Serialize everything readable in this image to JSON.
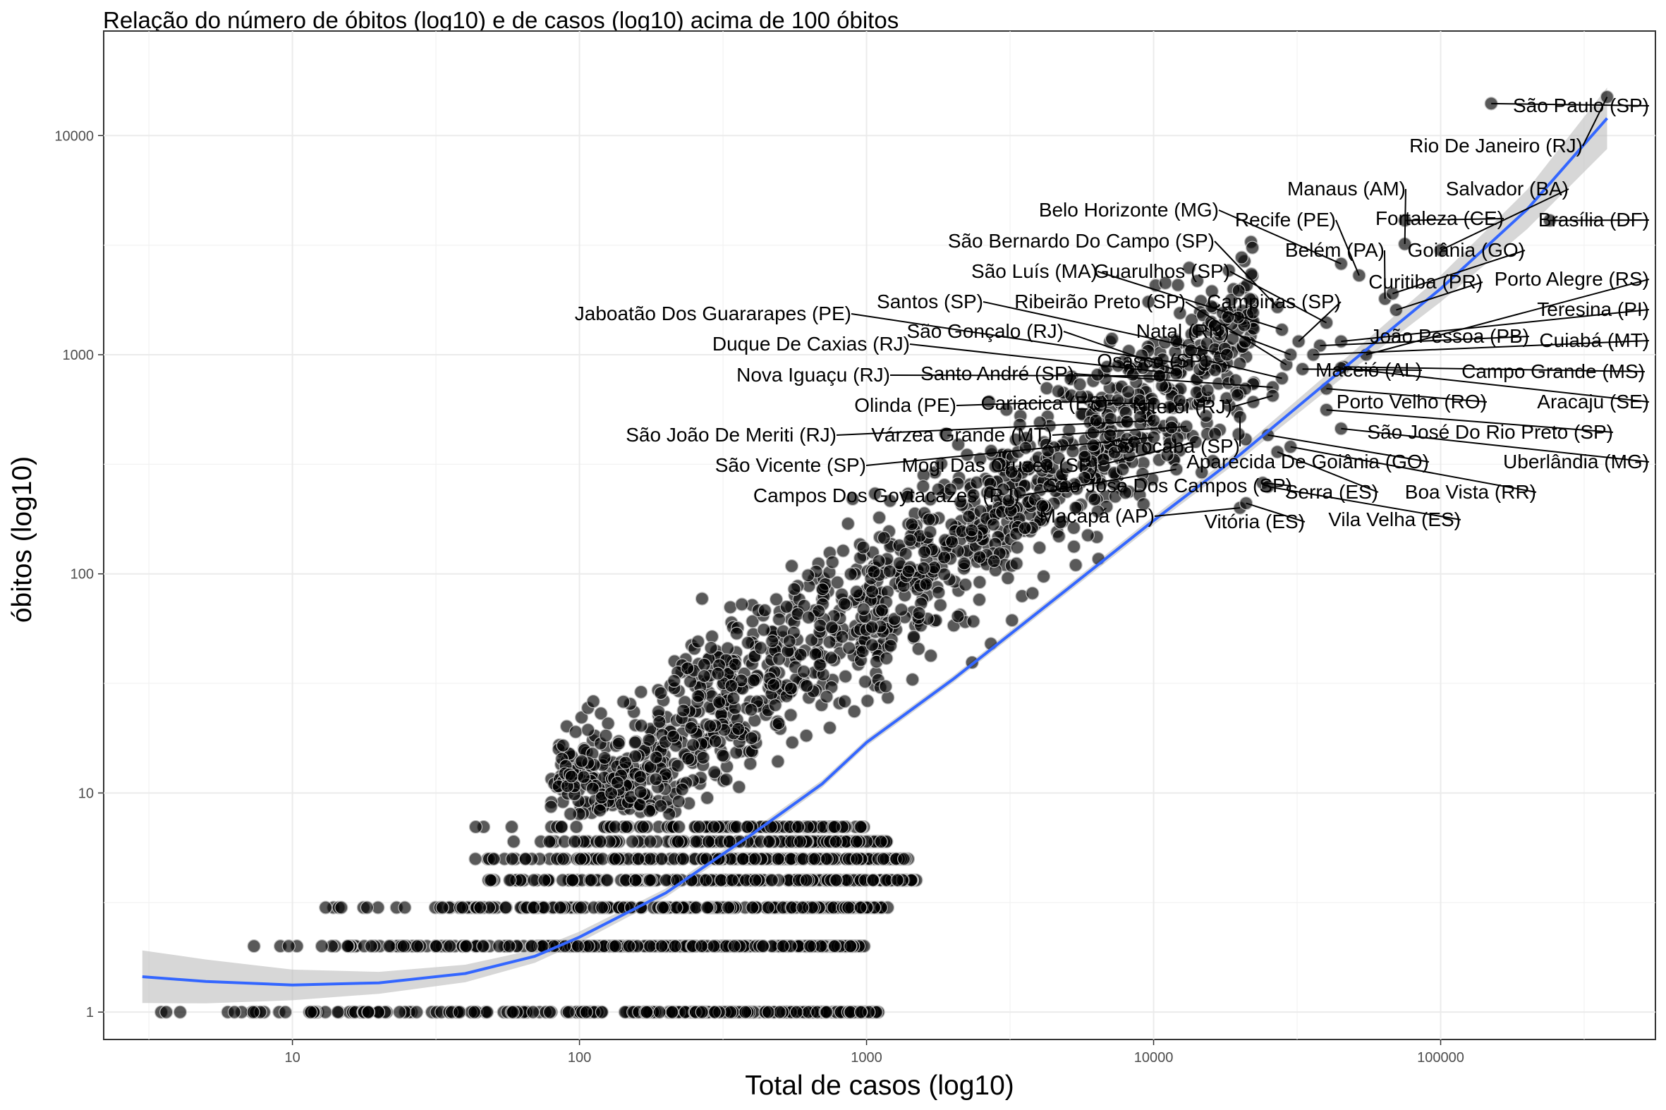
{
  "chart_data": {
    "type": "scatter",
    "title": "Relação do número de óbitos (log10) e de casos (log10) acima de 100 óbitos",
    "xlabel": "Total de casos (log10)",
    "ylabel": "óbitos (log10)",
    "x_scale": "log10",
    "y_scale": "log10",
    "xlim": [
      2.2,
      560000
    ],
    "ylim": [
      0.75,
      30000
    ],
    "x_ticks": [
      10,
      100,
      1000,
      10000,
      100000
    ],
    "x_tick_labels": [
      "10",
      "100",
      "1000",
      "10000",
      "100000"
    ],
    "y_ticks": [
      1,
      10,
      100,
      1000,
      10000
    ],
    "y_tick_labels": [
      "1",
      "10",
      "100",
      "1000",
      "10000"
    ],
    "grid": true,
    "point_color": "#000000",
    "point_opacity": 0.65,
    "point_outline": "#bfbfbf",
    "trend_color": "#3366ff",
    "band_color": "#bdbdbd",
    "trend": [
      {
        "x": 3,
        "y": 1.45
      },
      {
        "x": 5,
        "y": 1.38
      },
      {
        "x": 10,
        "y": 1.33
      },
      {
        "x": 20,
        "y": 1.36
      },
      {
        "x": 40,
        "y": 1.5
      },
      {
        "x": 70,
        "y": 1.8
      },
      {
        "x": 100,
        "y": 2.2
      },
      {
        "x": 200,
        "y": 3.5
      },
      {
        "x": 400,
        "y": 6.5
      },
      {
        "x": 700,
        "y": 11
      },
      {
        "x": 1000,
        "y": 17
      },
      {
        "x": 2000,
        "y": 33
      },
      {
        "x": 5000,
        "y": 85
      },
      {
        "x": 10000,
        "y": 175
      },
      {
        "x": 20000,
        "y": 350
      },
      {
        "x": 50000,
        "y": 950
      },
      {
        "x": 100000,
        "y": 2000
      },
      {
        "x": 200000,
        "y": 4600
      },
      {
        "x": 380000,
        "y": 12000
      }
    ],
    "band_width": [
      0.12,
      0.1,
      0.07,
      0.05,
      0.04,
      0.03,
      0.025,
      0.02,
      0.018,
      0.017,
      0.016,
      0.016,
      0.017,
      0.02,
      0.025,
      0.04,
      0.06,
      0.09,
      0.14
    ],
    "labeled_points": [
      {
        "name": "São Paulo (SP)",
        "x": 150000,
        "y": 14000
      },
      {
        "name": "Rio De Janeiro (RJ)",
        "x": 380000,
        "y": 15000
      },
      {
        "name": "Manaus (AM)",
        "x": 75000,
        "y": 3200
      },
      {
        "name": "Salvador (BA)",
        "x": 100000,
        "y": 3000
      },
      {
        "name": "Fortaleza (CE)",
        "x": 75000,
        "y": 4100
      },
      {
        "name": "Brasília (DF)",
        "x": 240000,
        "y": 4100
      },
      {
        "name": "Belo Horizonte (MG)",
        "x": 45000,
        "y": 2600
      },
      {
        "name": "Recife (PE)",
        "x": 52000,
        "y": 2300
      },
      {
        "name": "Belém (PA)",
        "x": 64000,
        "y": 1800
      },
      {
        "name": "Goiânia (GO)",
        "x": 68000,
        "y": 1900
      },
      {
        "name": "São Bernardo Do Campo (SP)",
        "x": 27000,
        "y": 1650
      },
      {
        "name": "São Luís (MA)",
        "x": 28000,
        "y": 1300
      },
      {
        "name": "Guarulhos (SP)",
        "x": 40000,
        "y": 1400
      },
      {
        "name": "Curitiba (PR)",
        "x": 70000,
        "y": 1600
      },
      {
        "name": "Porto Alegre (RS)",
        "x": 55000,
        "y": 1000
      },
      {
        "name": "Santos (SP)",
        "x": 18000,
        "y": 1000
      },
      {
        "name": "Ribeirão Preto (SP)",
        "x": 29000,
        "y": 900
      },
      {
        "name": "Campinas (SP)",
        "x": 32000,
        "y": 1150
      },
      {
        "name": "Teresina (PI)",
        "x": 45000,
        "y": 1150
      },
      {
        "name": "Jaboatão Dos Guararapes (PE)",
        "x": 12000,
        "y": 920
      },
      {
        "name": "Natal (RN)",
        "x": 30000,
        "y": 1000
      },
      {
        "name": "João Pessoa (PB)",
        "x": 38000,
        "y": 1100
      },
      {
        "name": "Cuiabá (MT)",
        "x": 36000,
        "y": 1000
      },
      {
        "name": "São Gonçalo (RJ)",
        "x": 12000,
        "y": 850
      },
      {
        "name": "Duque De Caxias (RJ)",
        "x": 12000,
        "y": 820
      },
      {
        "name": "Osasco (SP)",
        "x": 28000,
        "y": 780
      },
      {
        "name": "Maceió (AL)",
        "x": 33000,
        "y": 860
      },
      {
        "name": "Campo Grande (MS)",
        "x": 46000,
        "y": 880
      },
      {
        "name": "Nova Iguaçu (RJ)",
        "x": 10500,
        "y": 800
      },
      {
        "name": "Santo André (SP)",
        "x": 26000,
        "y": 710
      },
      {
        "name": "Porto Velho (RO)",
        "x": 40000,
        "y": 700
      },
      {
        "name": "Aracaju (SE)",
        "x": 45000,
        "y": 870
      },
      {
        "name": "Olinda (PE)",
        "x": 7500,
        "y": 620
      },
      {
        "name": "Cariacica (ES)",
        "x": 10000,
        "y": 600
      },
      {
        "name": "Niterói (RJ)",
        "x": 26000,
        "y": 650
      },
      {
        "name": "São José Do Rio Preto (SP)",
        "x": 40000,
        "y": 560
      },
      {
        "name": "São João De Meriti (RJ)",
        "x": 10000,
        "y": 500
      },
      {
        "name": "Várzea Grande (MT)",
        "x": 13000,
        "y": 470
      },
      {
        "name": "Sorocaba (SP)",
        "x": 20000,
        "y": 520
      },
      {
        "name": "Uberlândia (MG)",
        "x": 45000,
        "y": 460
      },
      {
        "name": "São Vicente (SP)",
        "x": 10000,
        "y": 420
      },
      {
        "name": "Mogi Das Cruzes (SP)",
        "x": 14000,
        "y": 400
      },
      {
        "name": "Aparecida De Goiânia (GO)",
        "x": 25000,
        "y": 430
      },
      {
        "name": "Serra (ES)",
        "x": 27000,
        "y": 360
      },
      {
        "name": "Boa Vista (RR)",
        "x": 30000,
        "y": 380
      },
      {
        "name": "Campos Dos Goytacazes (RJ)",
        "x": 12000,
        "y": 300
      },
      {
        "name": "São José Dos Campos (SP)",
        "x": 24000,
        "y": 260
      },
      {
        "name": "Macapá (AP)",
        "x": 20000,
        "y": 200
      },
      {
        "name": "Vitória (ES)",
        "x": 21000,
        "y": 210
      },
      {
        "name": "Vila Velha (ES)",
        "x": 25000,
        "y": 250
      }
    ]
  }
}
